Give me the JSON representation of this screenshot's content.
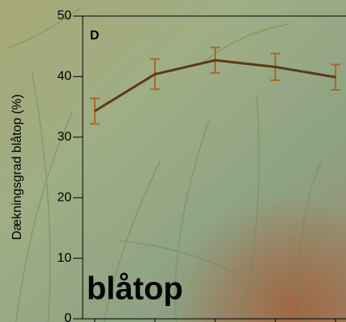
{
  "chart_data": {
    "type": "line",
    "panel_label": "D",
    "annotation": "blåtop",
    "ylabel": "Dækningsgrad blåtop (%)",
    "categories": [
      null,
      null,
      null,
      null,
      null
    ],
    "series": [
      {
        "color": "#5b3a14",
        "error_color": "#a8692e",
        "values": [
          34.3,
          40.4,
          42.7,
          41.6,
          39.9
        ],
        "errors": [
          2.1,
          2.5,
          2.1,
          2.2,
          2.1
        ]
      }
    ],
    "ylim": [
      0,
      50
    ],
    "yticks": [
      0,
      10,
      20,
      30,
      40,
      50
    ]
  }
}
